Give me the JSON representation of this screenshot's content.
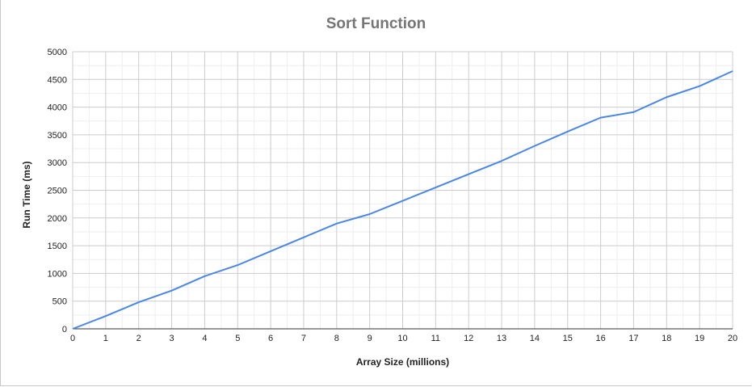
{
  "chart_data": {
    "type": "line",
    "title": "Sort Function",
    "xlabel": "Array Size (millions)",
    "ylabel": "Run Time (ms)",
    "xlim": [
      0,
      20
    ],
    "ylim": [
      0,
      5000
    ],
    "x_ticks": [
      0,
      1,
      2,
      3,
      4,
      5,
      6,
      7,
      8,
      9,
      10,
      11,
      12,
      13,
      14,
      15,
      16,
      17,
      18,
      19,
      20
    ],
    "y_ticks": [
      0,
      500,
      1000,
      1500,
      2000,
      2500,
      3000,
      3500,
      4000,
      4500,
      5000
    ],
    "grid": true,
    "minor_grid": true,
    "legend": "none",
    "series": [
      {
        "color": "#4a86e8",
        "x": [
          0,
          1,
          2,
          3,
          4,
          5,
          6,
          7,
          8,
          9,
          10,
          11,
          12,
          13,
          14,
          15,
          16,
          17,
          18,
          19,
          20
        ],
        "y": [
          0,
          230,
          480,
          690,
          950,
          1150,
          1400,
          1650,
          1900,
          2070,
          2310,
          2550,
          2790,
          3030,
          3300,
          3560,
          3810,
          3910,
          4180,
          4380,
          4650
        ]
      }
    ]
  }
}
